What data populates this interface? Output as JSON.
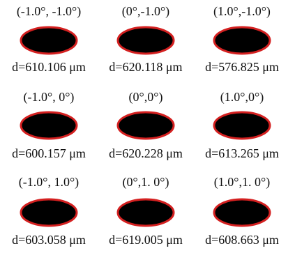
{
  "cells": [
    {
      "angle": "(-1.0°, -1.0°)",
      "diameter": "d=610.106 μm"
    },
    {
      "angle": "(0°,-1.0°)",
      "diameter": "d=620.118 μm"
    },
    {
      "angle": "(1.0°,-1.0°)",
      "diameter": "d=576.825 μm"
    },
    {
      "angle": "(-1.0°, 0°)",
      "diameter": "d=600.157 μm"
    },
    {
      "angle": "(0°,0°)",
      "diameter": "d=620.228 μm"
    },
    {
      "angle": "(1.0°,0°)",
      "diameter": "d=613.265 μm"
    },
    {
      "angle": "(-1.0°, 1.0°)",
      "diameter": "d=603.058 μm"
    },
    {
      "angle": "(0°,1. 0°)",
      "diameter": "d=619.005 μm"
    },
    {
      "angle": "(1.0°,1. 0°)",
      "diameter": "d=608.663 μm"
    }
  ]
}
